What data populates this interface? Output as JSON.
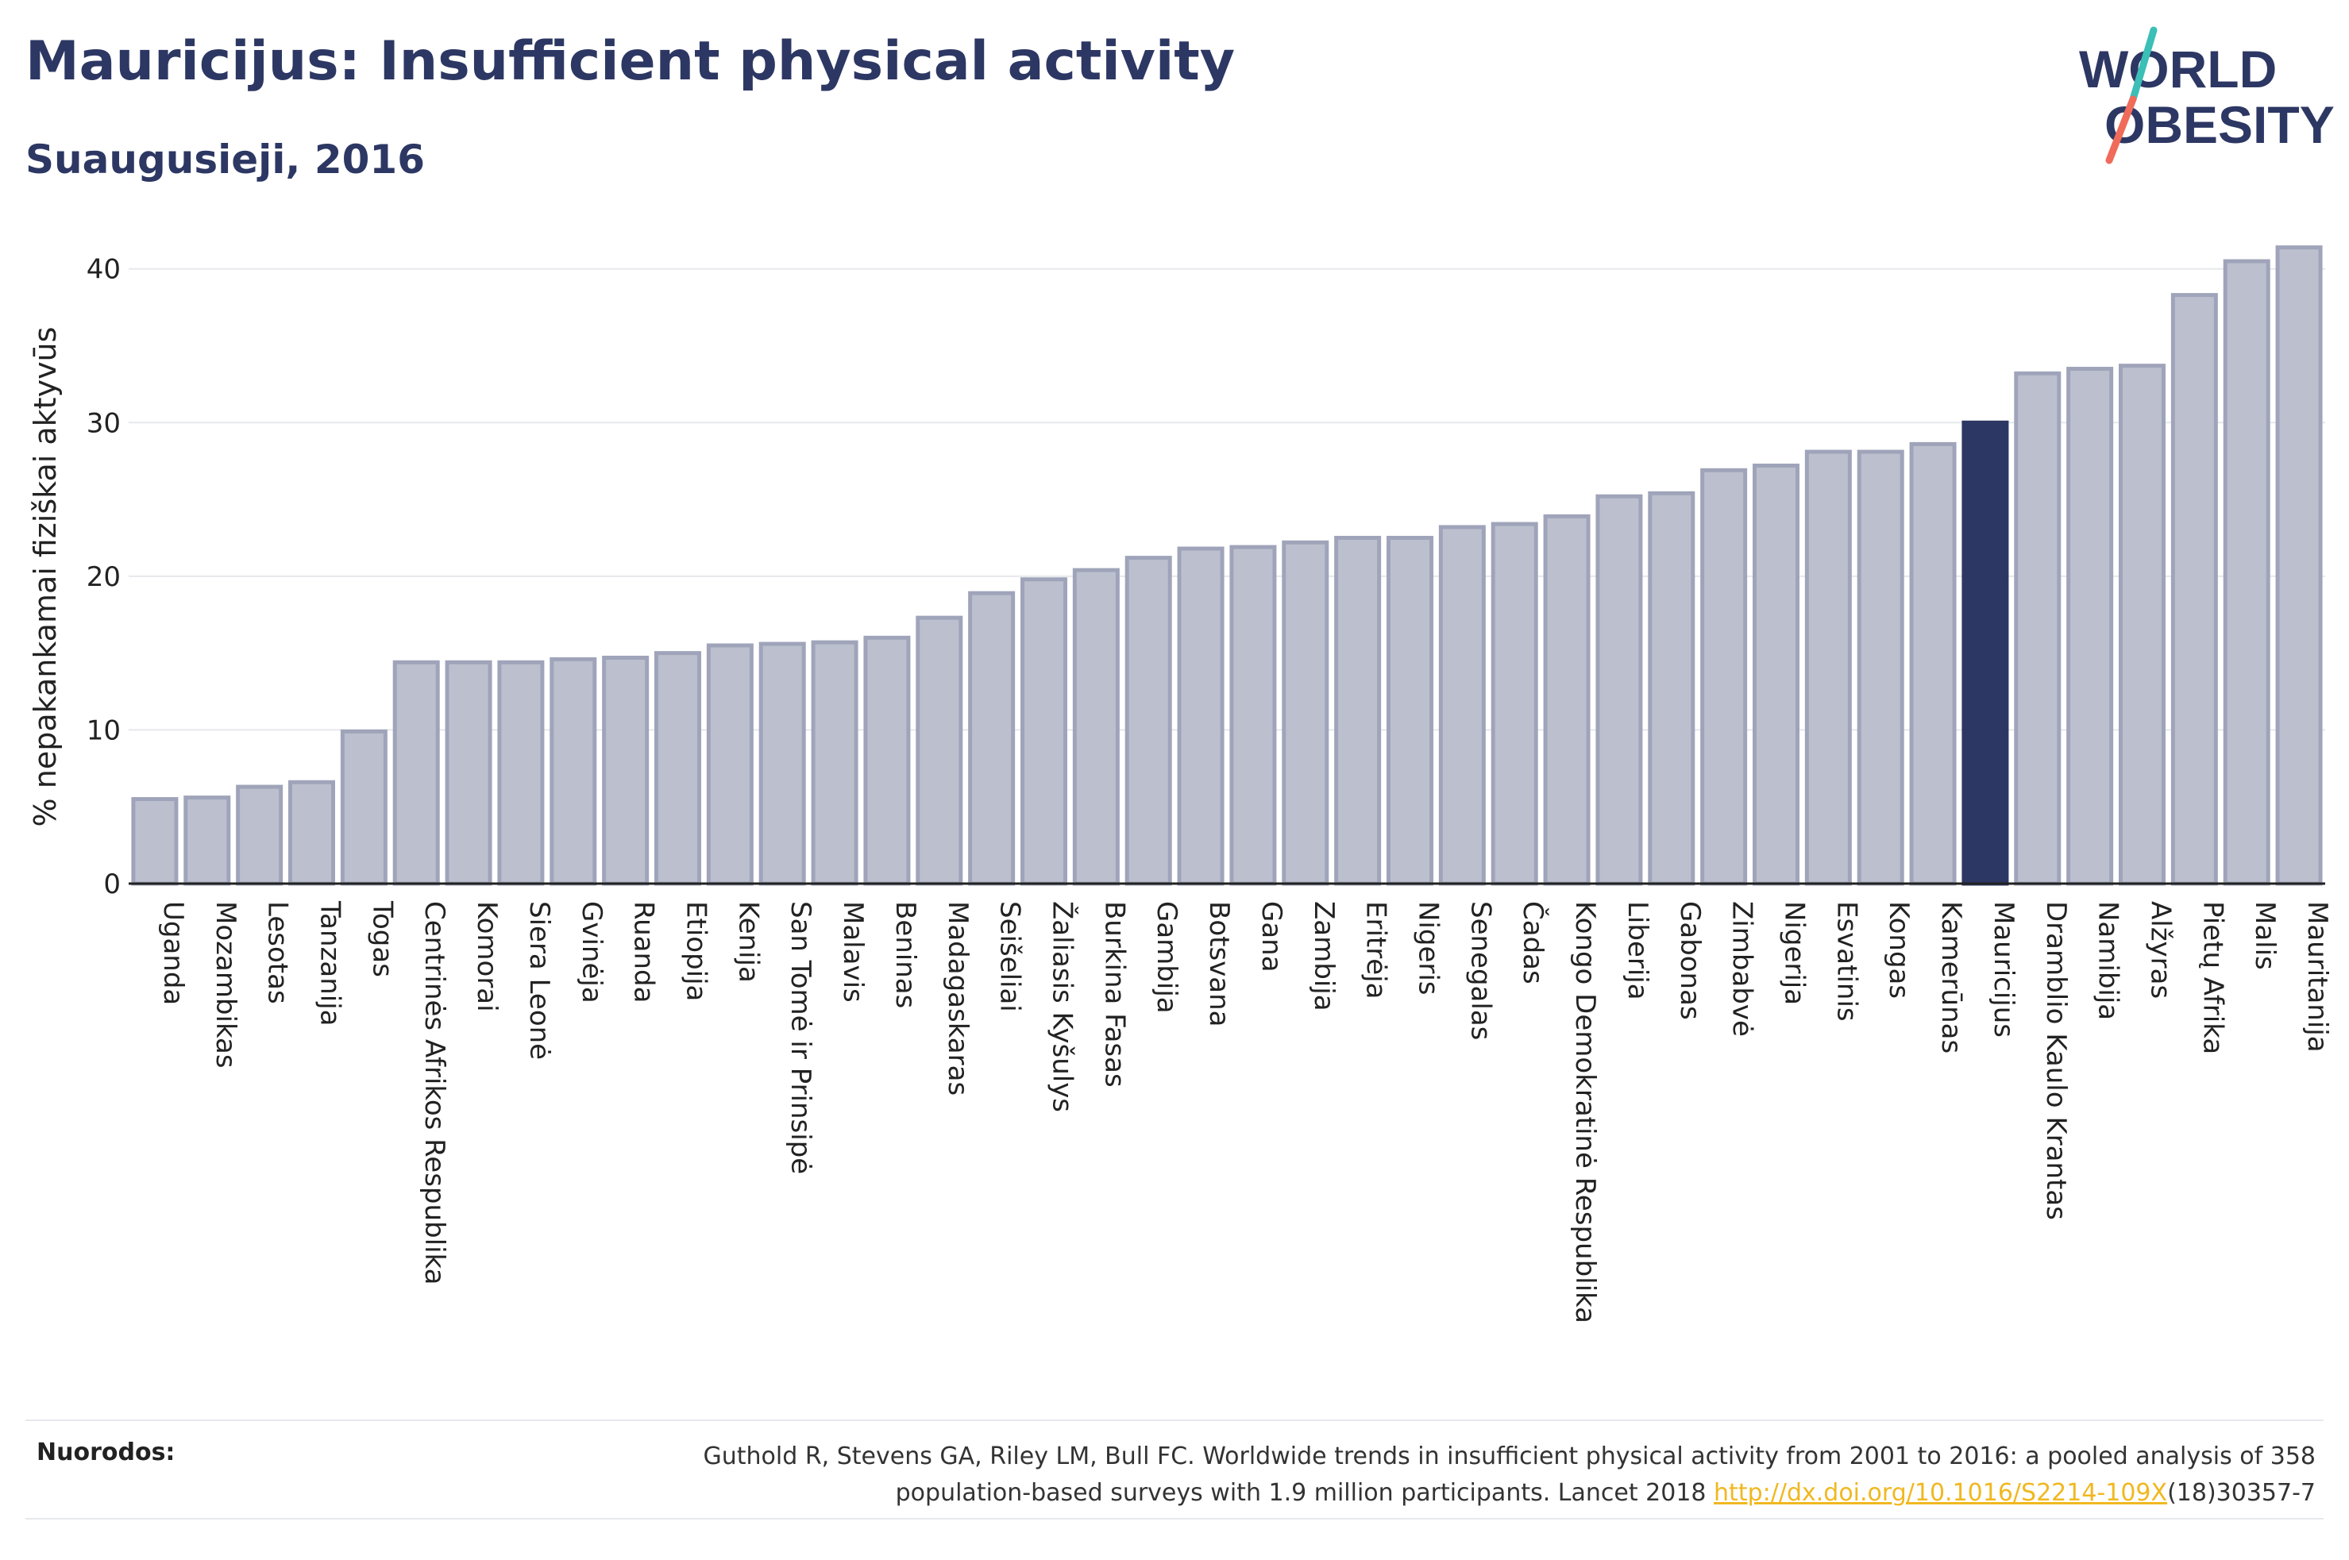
{
  "header": {
    "title": "Mauricijus: Insufficient physical activity",
    "subtitle": "Suaugusieji, 2016"
  },
  "logo": {
    "line1": "WORLD",
    "line2": "OBESITY"
  },
  "colors": {
    "highlight": "#2d3763",
    "bar_fill": "#bcc0ce",
    "bar_stroke": "#9fa4ba",
    "grid": "#e6e8ec",
    "logo_teal": "#3bbfb6",
    "logo_coral": "#f06b5a",
    "link": "#f0b820"
  },
  "chart_data": {
    "type": "bar",
    "ylabel": "% nepakankamai fiziškai aktyvūs",
    "ylim": [
      0,
      42
    ],
    "yticks": [
      0,
      10,
      20,
      30,
      40
    ],
    "highlight": "Mauricijus",
    "categories": [
      "Uganda",
      "Mozambikas",
      "Lesotas",
      "Tanzanija",
      "Togas",
      "Centrinės Afrikos Respublika",
      "Komorai",
      "Siera Leonė",
      "Gvinėja",
      "Ruanda",
      "Etiopija",
      "Kenija",
      "San Tomė ir Prinsipė",
      "Malavis",
      "Beninas",
      "Madagaskaras",
      "Seišeliai",
      "Žaliasis Kyšulys",
      "Burkina Fasas",
      "Gambija",
      "Botsvana",
      "Gana",
      "Zambija",
      "Eritrėja",
      "Nigeris",
      "Senegalas",
      "Čadas",
      "Kongo Demokratinė Respublika",
      "Liberija",
      "Gabonas",
      "Zimbabvė",
      "Nigerija",
      "Esvatinis",
      "Kongas",
      "Kamerūnas",
      "Mauricijus",
      "Dramblio Kaulo Krantas",
      "Namibija",
      "Alžyras",
      "Pietų Afrika",
      "Malis",
      "Mauritanija"
    ],
    "values": [
      5.5,
      5.6,
      6.3,
      6.6,
      9.9,
      14.4,
      14.4,
      14.4,
      14.6,
      14.7,
      15.0,
      15.5,
      15.6,
      15.7,
      16.0,
      17.3,
      18.9,
      19.8,
      20.4,
      21.2,
      21.8,
      21.9,
      22.2,
      22.5,
      22.5,
      23.2,
      23.4,
      23.9,
      25.2,
      25.4,
      26.9,
      27.2,
      28.1,
      28.1,
      28.6,
      30.0,
      33.2,
      33.5,
      33.7,
      38.3,
      40.5,
      41.4
    ]
  },
  "references": {
    "label": "Nuorodos:",
    "line1": "Guthold R, Stevens GA, Riley LM, Bull FC. Worldwide trends in insufficient physical activity from 2001 to 2016: a pooled analysis of 358",
    "line2_prefix": "population-based surveys with 1.9 million participants. Lancet 2018 ",
    "link_text": "http://dx.doi.org/10.1016/S2214-109X",
    "line2_suffix": "(18)30357-7"
  }
}
